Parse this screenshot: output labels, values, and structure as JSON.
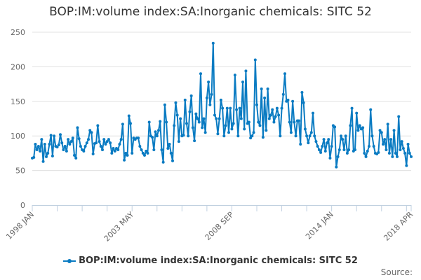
{
  "chart_data": {
    "type": "line",
    "title": "BOP:IM:volume index:SA:Inorganic chemicals: SITC 52",
    "xlabel": "",
    "ylabel": "",
    "ylim": [
      0,
      250
    ],
    "y_ticks": [
      "0",
      "50",
      "100",
      "150",
      "200",
      "250"
    ],
    "x_tick_labels": [
      "1998 JAN",
      "2003 MAY",
      "2008 SEP",
      "2014 JAN",
      "2018 APR"
    ],
    "frequency": "monthly",
    "grid": true,
    "legend_position": "bottom",
    "color": "#0a7bc2",
    "series": [
      {
        "name": "BOP:IM:volume index:SA:Inorganic chemicals: SITC 52",
        "by_year": [
          {
            "year": 1998,
            "values": [
              68,
              69,
              88,
              80,
              85,
              78,
              95,
              63,
              88,
              70,
              75,
              88
            ]
          },
          {
            "year": 1999,
            "values": [
              101,
              71,
              100,
              85,
              84,
              87,
              102,
              90,
              80,
              85,
              78,
              95
            ]
          },
          {
            "year": 2000,
            "values": [
              88,
              92,
              97,
              72,
              68,
              112,
              96,
              85,
              80,
              78,
              85,
              90
            ]
          },
          {
            "year": 2001,
            "values": [
              95,
              108,
              105,
              74,
              89,
              90,
              115,
              92,
              85,
              80,
              95,
              88
            ]
          },
          {
            "year": 2002,
            "values": [
              92,
              95,
              90,
              75,
              82,
              78,
              82,
              80,
              88,
              95,
              117,
              65
            ]
          },
          {
            "year": 2003,
            "values": [
              75,
              72,
              129,
              118,
              75,
              97,
              95,
              97,
              97,
              85,
              80,
              75
            ]
          },
          {
            "year": 2004,
            "values": [
              72,
              78,
              75,
              120,
              100,
              98,
              80,
              106,
              100,
              108,
              121,
              80
            ]
          },
          {
            "year": 2005,
            "values": [
              62,
              145,
              120,
              82,
              88,
              75,
              64,
              115,
              148,
              130,
              92,
              125
            ]
          },
          {
            "year": 2006,
            "values": [
              100,
              101,
              152,
              118,
              100,
              135,
              158,
              112,
              93,
              132,
              125,
              120
            ]
          },
          {
            "year": 2007,
            "values": [
              190,
              112,
              125,
              105,
              155,
              178,
              145,
              160,
              234,
              130,
              125,
              103
            ]
          },
          {
            "year": 2008,
            "values": [
              125,
              152,
              140,
              100,
              115,
              140,
              105,
              140,
              110,
              118,
              188,
              138
            ]
          },
          {
            "year": 2009,
            "values": [
              100,
              140,
              125,
              178,
              110,
              194,
              118,
              120,
              97,
              100,
              105,
              210
            ]
          },
          {
            "year": 2010,
            "values": [
              145,
              120,
              115,
              168,
              98,
              155,
              108,
              168,
              125,
              130,
              138,
              120
            ]
          },
          {
            "year": 2011,
            "values": [
              128,
              140,
              130,
              100,
              140,
              160,
              190,
              150,
              152,
              120,
              105,
              150
            ]
          },
          {
            "year": 2012,
            "values": [
              120,
              100,
              122,
              122,
              88,
              163,
              148,
              110,
              100,
              90,
              100,
              105
            ]
          },
          {
            "year": 2013,
            "values": [
              133,
              100,
              92,
              85,
              80,
              76,
              85,
              95,
              78,
              90,
              95,
              68
            ]
          },
          {
            "year": 2014,
            "values": [
              85,
              115,
              113,
              55,
              70,
              80,
              100,
              95,
              80,
              100,
              75,
              80
            ]
          },
          {
            "year": 2015,
            "values": [
              115,
              140,
              78,
              80,
              133,
              108,
              115,
              110,
              112,
              75,
              70,
              78
            ]
          },
          {
            "year": 2016,
            "values": [
              85,
              138,
              100,
              85,
              75,
              74,
              76,
              108,
              105,
              88,
              95,
              80
            ]
          },
          {
            "year": 2017,
            "values": [
              117,
              75,
              95,
              70,
              108,
              75,
              70,
              128,
              80,
              92,
              82,
              75
            ]
          },
          {
            "year": 2018,
            "values": [
              57,
              88,
              75,
              70
            ]
          }
        ]
      }
    ],
    "source_label": "Source:"
  }
}
